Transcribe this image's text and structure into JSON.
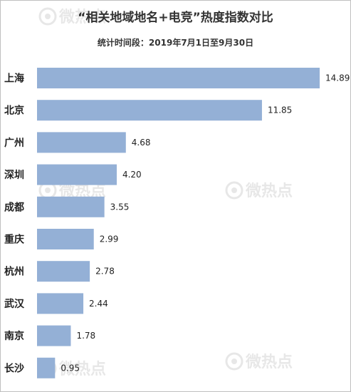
{
  "chart_data": {
    "type": "bar",
    "orientation": "horizontal",
    "title": "“相关地域地名+电竞”热度指数对比",
    "subtitle": "统计时间段：2019年7月1日至9月30日",
    "categories": [
      "上海",
      "北京",
      "广州",
      "深圳",
      "成都",
      "重庆",
      "杭州",
      "武汉",
      "南京",
      "长沙"
    ],
    "values": [
      14.89,
      11.85,
      4.68,
      4.2,
      3.55,
      2.99,
      2.78,
      2.44,
      1.78,
      0.95
    ],
    "value_labels": [
      "14.89",
      "11.85",
      "4.68",
      "4.20",
      "3.55",
      "2.99",
      "2.78",
      "2.44",
      "1.78",
      "0.95"
    ],
    "xlim": [
      0,
      14.89
    ],
    "grid": false,
    "legend": "none",
    "bar_color": "#94b0d6"
  },
  "watermark": {
    "text": "微热点",
    "icon": "weibo-eye-icon",
    "color": "#000000"
  }
}
